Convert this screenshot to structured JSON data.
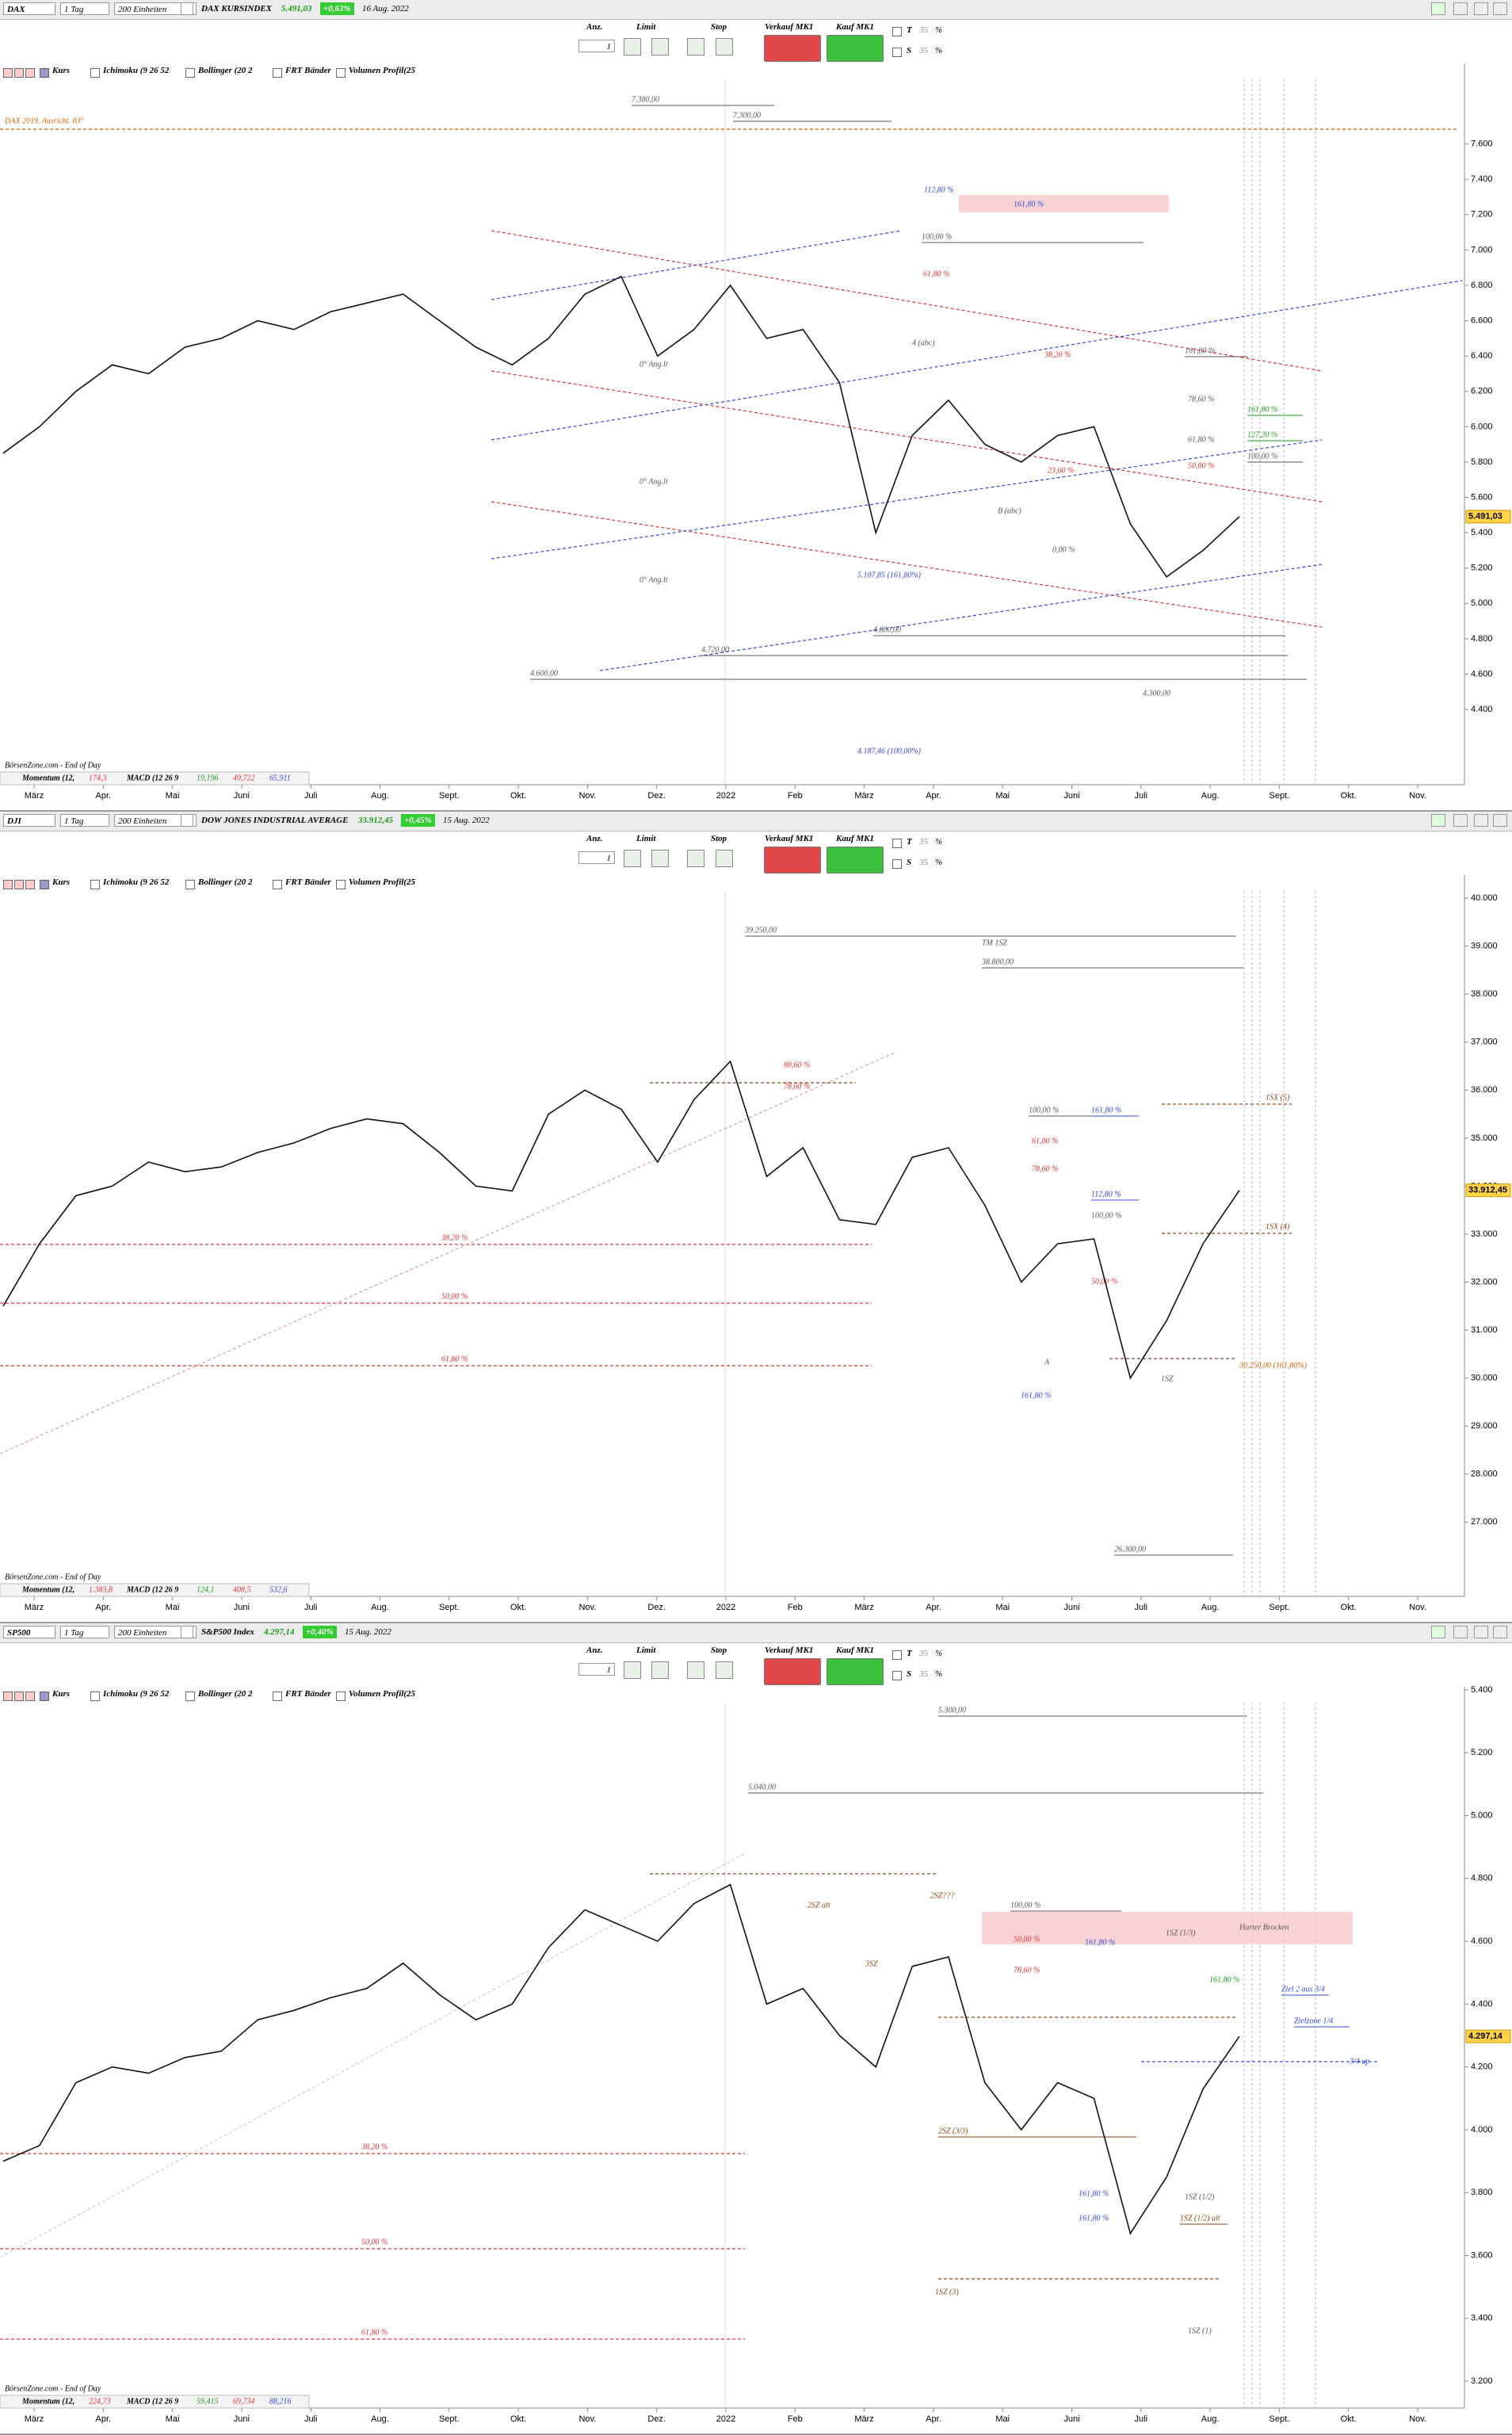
{
  "panels": [
    {
      "header": {
        "symbol": "DAX",
        "interval": "1 Tag",
        "units": "200 Einheiten",
        "name": "DAX KURSINDEX",
        "price": "5.491,03",
        "change": "+0,63%",
        "date": "16 Aug. 2022"
      },
      "toolbar": {
        "qty_label": "Anz.",
        "qty": 1,
        "limit": "Limit",
        "stop": "Stop",
        "sell": "Verkauf MK1",
        "buy": "Kauf MK1",
        "t": "T",
        "t_pct": 35,
        "s": "S",
        "s_pct": 35,
        "pct": "%"
      },
      "indicators": [
        "Kurs",
        "Ichimoku (9 26 52",
        "Bollinger (20 2",
        "FRT Bänder",
        "Volumen Profil(25"
      ],
      "chart_data": {
        "type": "line",
        "color": "#111111",
        "values": [
          5850,
          6000,
          6200,
          6350,
          6300,
          6450,
          6500,
          6600,
          6550,
          6650,
          6700,
          6750,
          6600,
          6450,
          6350,
          6500,
          6750,
          6850,
          6400,
          6550,
          6800,
          6500,
          6550,
          6250,
          5400,
          5950,
          6150,
          5900,
          5800,
          5950,
          6000,
          5450,
          5150,
          5300,
          5491
        ],
        "ylim": [
          4019,
          8011
        ],
        "yticks": [
          {
            "value": 4400,
            "label": "4.400"
          },
          {
            "value": 4600,
            "label": "4.600"
          },
          {
            "value": 4800,
            "label": "4.800"
          },
          {
            "value": 5000,
            "label": "5.000"
          },
          {
            "value": 5200,
            "label": "5.200"
          },
          {
            "value": 5400,
            "label": "5.400"
          },
          {
            "value": 5600,
            "label": "5.600"
          },
          {
            "value": 5800,
            "label": "5.800"
          },
          {
            "value": 6000,
            "label": "6.000"
          },
          {
            "value": 6200,
            "label": "6.200"
          },
          {
            "value": 6400,
            "label": "6.400"
          },
          {
            "value": 6600,
            "label": "6.600"
          },
          {
            "value": 6800,
            "label": "6.800"
          },
          {
            "value": 7000,
            "label": "7.000"
          },
          {
            "value": 7200,
            "label": "7.200"
          },
          {
            "value": 7400,
            "label": "7.400"
          },
          {
            "value": 7600,
            "label": "7.600"
          }
        ],
        "xlabels": [
          "März",
          "Apr.",
          "Mai",
          "Juni",
          "Juli",
          "Aug.",
          "Sept.",
          "Okt.",
          "Nov.",
          "Dez.",
          "2022",
          "Feb",
          "März",
          "Apr.",
          "Mai",
          "Juni",
          "Juli",
          "Aug.",
          "Sept.",
          "Okt.",
          "Nov."
        ],
        "annotations": [
          "7.380,00",
          "7.300,00",
          "112,80 %",
          "161,80 %",
          "100,00 %",
          "61,80 %",
          "4 (abc)",
          "38,20 %",
          "161,80 %",
          "78,60 %",
          "161,80 %",
          "61,80 %",
          "127,20 %",
          "100,00 %",
          "50,00 %",
          "23,60 %",
          "B (abc)",
          "0,00 %",
          "5.107,85 (161,80%)",
          "0° Ang.lt",
          "0° Ang.lt",
          "0° Ang.lt",
          "4.800,00",
          "4.720,00",
          "4.600,00",
          "4.300,00",
          "4.187,46 (100,00%)",
          "DAX 2019, Ausricht. 03°"
        ]
      },
      "footer": {
        "source": "BörsenZone.com - End of Day",
        "momentum": "Momentum (12,",
        "momentum_value": "174,3",
        "macd": "MACD (12 26 9",
        "macd_values": [
          "19,196",
          "49,722",
          "65,911"
        ]
      }
    },
    {
      "header": {
        "symbol": "DJI",
        "interval": "1 Tag",
        "units": "200 Einheiten",
        "name": "DOW JONES INDUSTRIAL AVERAGE",
        "price": "33.912,45",
        "change": "+0,45%",
        "date": "15 Aug. 2022"
      },
      "toolbar": {
        "qty_label": "Anz.",
        "qty": 1,
        "limit": "Limit",
        "stop": "Stop",
        "sell": "Verkauf MK1",
        "buy": "Kauf MK1",
        "t": "T",
        "t_pct": 35,
        "s": "S",
        "s_pct": 35,
        "pct": "%"
      },
      "indicators": [
        "Kurs",
        "Ichimoku (9 26 52",
        "Bollinger (20 2",
        "FRT Bänder",
        "Volumen Profil(25"
      ],
      "chart_data": {
        "type": "line",
        "color": "#111111",
        "values": [
          31500,
          32800,
          33800,
          34000,
          34500,
          34300,
          34400,
          34700,
          34900,
          35200,
          35400,
          35300,
          34700,
          34000,
          33900,
          35500,
          36000,
          35600,
          34500,
          35800,
          36600,
          34200,
          34800,
          33300,
          33200,
          34600,
          34800,
          33600,
          32000,
          32800,
          32900,
          30000,
          31200,
          32800,
          33912.45
        ],
        "ylim": [
          25700,
          40150
        ],
        "yticks": [
          {
            "value": 27000,
            "label": "27.000"
          },
          {
            "value": 28000,
            "label": "28.000"
          },
          {
            "value": 29000,
            "label": "29.000"
          },
          {
            "value": 30000,
            "label": "30.000"
          },
          {
            "value": 31000,
            "label": "31.000"
          },
          {
            "value": 32000,
            "label": "32.000"
          },
          {
            "value": 33000,
            "label": "33.000"
          },
          {
            "value": 34000,
            "label": "34.000"
          },
          {
            "value": 35000,
            "label": "35.000"
          },
          {
            "value": 36000,
            "label": "36.000"
          },
          {
            "value": 37000,
            "label": "37.000"
          },
          {
            "value": 38000,
            "label": "38.000"
          },
          {
            "value": 39000,
            "label": "39.000"
          },
          {
            "value": 40000,
            "label": "40.000"
          }
        ],
        "xlabels": [
          "März",
          "Apr.",
          "Mai",
          "Juni",
          "Juli",
          "Aug.",
          "Sept.",
          "Okt.",
          "Nov.",
          "Dez.",
          "2022",
          "Feb",
          "März",
          "Apr.",
          "Mai",
          "Juni",
          "Juli",
          "Aug.",
          "Sept.",
          "Okt.",
          "Nov."
        ],
        "annotations": [
          "38,20 %",
          "50,00 %",
          "61,80 %",
          "39.250,00",
          "38.800,00",
          "88,60 %",
          "78,60 %",
          "100,00 %",
          "161,80 %",
          "61,80 %",
          "78,60 %",
          "112,80 %",
          "100,00 %",
          "50,00 %",
          "161,80 %",
          "1SX (5)",
          "1SX (4)",
          "30.250,00 (161,80%)",
          "A",
          "1SZ",
          "26.300,00",
          "TM 1SZ"
        ]
      },
      "footer": {
        "source": "BörsenZone.com - End of Day",
        "momentum": "Momentum (12,",
        "momentum_value": "1.383,8",
        "macd": "MACD (12 26 9",
        "macd_values": [
          "124,1",
          "408,5",
          "532,6"
        ]
      }
    },
    {
      "header": {
        "symbol": "SP500",
        "interval": "1 Tag",
        "units": "200 Einheiten",
        "name": "S&P500 Index",
        "price": "4.297,14",
        "change": "+0,40%",
        "date": "15 Aug. 2022"
      },
      "toolbar": {
        "qty_label": "Anz.",
        "qty": 1,
        "limit": "Limit",
        "stop": "Stop",
        "sell": "Verkauf MK1",
        "buy": "Kauf MK1",
        "t": "T",
        "t_pct": 35,
        "s": "S",
        "s_pct": 35,
        "pct": "%"
      },
      "indicators": [
        "Kurs",
        "Ichimoku (9 26 52",
        "Bollinger (20 2",
        "FRT Bänder",
        "Volumen Profil(25"
      ],
      "chart_data": {
        "type": "line",
        "color": "#111111",
        "values": [
          3900,
          3950,
          4150,
          4200,
          4180,
          4230,
          4250,
          4350,
          4380,
          4420,
          4450,
          4530,
          4430,
          4350,
          4400,
          4580,
          4700,
          4650,
          4600,
          4720,
          4780,
          4400,
          4450,
          4300,
          4200,
          4520,
          4550,
          4150,
          4000,
          4150,
          4100,
          3670,
          3850,
          4130,
          4297.14
        ],
        "ylim": [
          3127,
          5410
        ],
        "yticks": [
          {
            "value": 3200,
            "label": "3.200"
          },
          {
            "value": 3400,
            "label": "3.400"
          },
          {
            "value": 3600,
            "label": "3.600"
          },
          {
            "value": 3800,
            "label": "3.800"
          },
          {
            "value": 4000,
            "label": "4.000"
          },
          {
            "value": 4200,
            "label": "4.200"
          },
          {
            "value": 4400,
            "label": "4.400"
          },
          {
            "value": 4600,
            "label": "4.600"
          },
          {
            "value": 4800,
            "label": "4.800"
          },
          {
            "value": 5000,
            "label": "5.000"
          },
          {
            "value": 5200,
            "label": "5.200"
          },
          {
            "value": 5400,
            "label": "5.400"
          }
        ],
        "xlabels": [
          "März",
          "Apr.",
          "Mai",
          "Juni",
          "Juli",
          "Aug.",
          "Sept.",
          "Okt.",
          "Nov.",
          "Dez.",
          "2022",
          "Feb",
          "März",
          "Apr.",
          "Mai",
          "Juni",
          "Juli",
          "Aug.",
          "Sept.",
          "Okt.",
          "Nov."
        ],
        "annotations": [
          "38,20 %",
          "50,00 %",
          "61,80 %",
          "5.300,00",
          "5.040,00",
          "2SZ alt",
          "2SZ???",
          "100,00 %",
          "50,00 %",
          "161,80 %",
          "1SZ (1/3)",
          "Harter Brocken",
          "3SZ",
          "78,60 %",
          "161,80 %",
          "Ziel 2 aus 3/4",
          "Zielzone 1/4",
          "3/4 up",
          "2SZ (3/3)",
          "161,80 %",
          "1SZ (1/2)",
          "161,80 %",
          "1SZ (1/2) alt",
          "1SZ (3)",
          "1SZ (1)"
        ]
      },
      "footer": {
        "source": "BörsenZone.com - End of Day",
        "momentum": "Momentum (12,",
        "momentum_value": "224,73",
        "macd": "MACD (12 26 9",
        "macd_values": [
          "59,415",
          "69,734",
          "88,216"
        ]
      }
    }
  ]
}
